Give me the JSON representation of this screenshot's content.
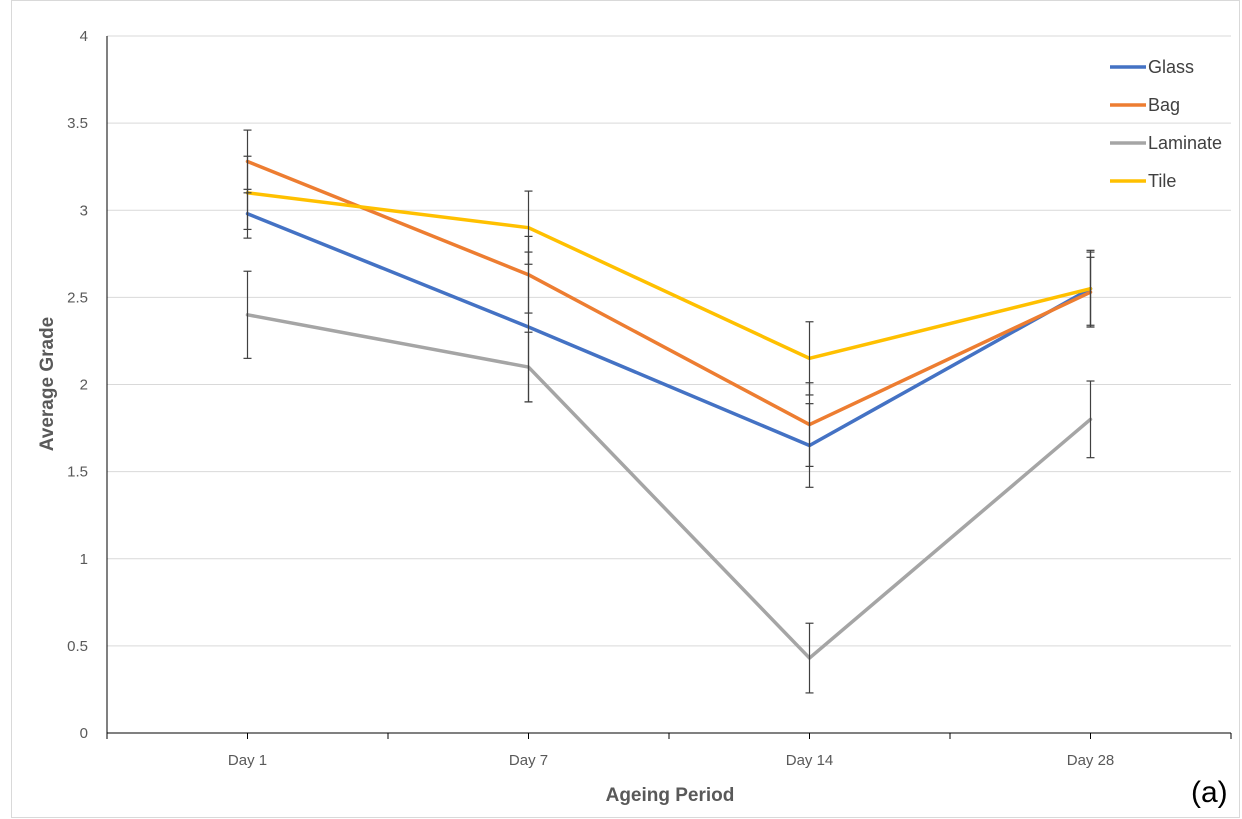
{
  "chart_data": {
    "type": "line",
    "title": "",
    "xlabel": "Ageing Period",
    "ylabel": "Average Grade",
    "categories": [
      "Day 1",
      "Day 7",
      "Day 14",
      "Day 28"
    ],
    "ylim": [
      0,
      4
    ],
    "yticks": [
      0,
      0.5,
      1,
      1.5,
      2,
      2.5,
      3,
      3.5,
      4
    ],
    "ytick_labels": [
      "0",
      "0.5",
      "1",
      "1.5",
      "2",
      "2.5",
      "3",
      "3.5",
      "4"
    ],
    "grid": "horizontal",
    "legend_position": "top-right",
    "panel_label": "(a)",
    "series": [
      {
        "name": "Glass",
        "color": "#4472c4",
        "values": [
          2.98,
          2.33,
          1.65,
          2.55
        ],
        "error": [
          0.14,
          0.43,
          0.24,
          0.22
        ]
      },
      {
        "name": "Bag",
        "color": "#ed7d31",
        "values": [
          3.28,
          2.63,
          1.77,
          2.53
        ],
        "error": [
          0.18,
          0.22,
          0.24,
          0.2
        ]
      },
      {
        "name": "Laminate",
        "color": "#a5a5a5",
        "values": [
          2.4,
          2.1,
          0.43,
          1.8
        ],
        "error": [
          0.25,
          0.2,
          0.2,
          0.22
        ]
      },
      {
        "name": "Tile",
        "color": "#ffc000",
        "values": [
          3.1,
          2.9,
          2.15,
          2.55
        ],
        "error": [
          0.21,
          0.21,
          0.21,
          0.21
        ]
      }
    ]
  }
}
